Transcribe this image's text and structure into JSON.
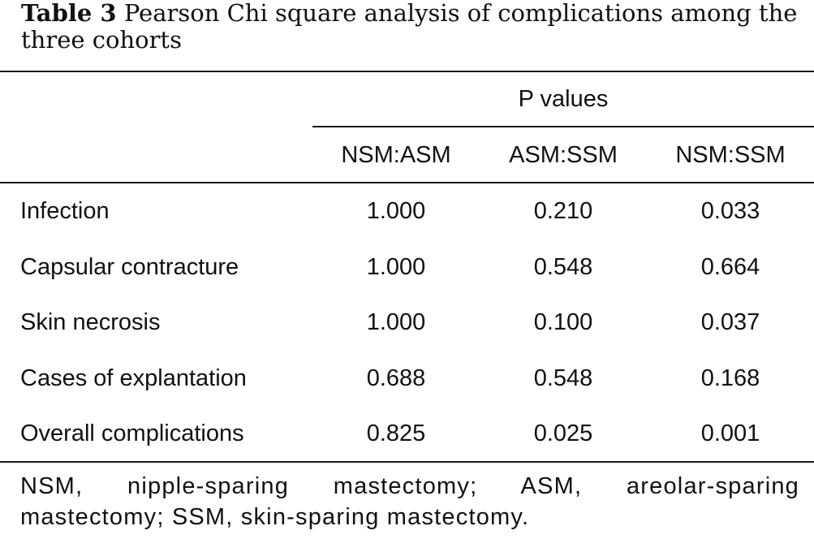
{
  "caption": {
    "label": "Table 3",
    "text": " Pearson Chi square analysis of complications among the three cohorts"
  },
  "table": {
    "spanner": "P values",
    "columns": [
      "NSM:ASM",
      "ASM:SSM",
      "NSM:SSM"
    ],
    "rows": [
      {
        "label": "Infection",
        "values": [
          "1.000",
          "0.210",
          "0.033"
        ]
      },
      {
        "label": "Capsular contracture",
        "values": [
          "1.000",
          "0.548",
          "0.664"
        ]
      },
      {
        "label": "Skin necrosis",
        "values": [
          "1.000",
          "0.100",
          "0.037"
        ]
      },
      {
        "label": "Cases of explantation",
        "values": [
          "0.688",
          "0.548",
          "0.168"
        ]
      },
      {
        "label": "Overall complications",
        "values": [
          "0.825",
          "0.025",
          "0.001"
        ]
      }
    ]
  },
  "footnote": "NSM, nipple-sparing mastectomy; ASM, areolar-sparing mastectomy; SSM, skin-sparing mastectomy."
}
